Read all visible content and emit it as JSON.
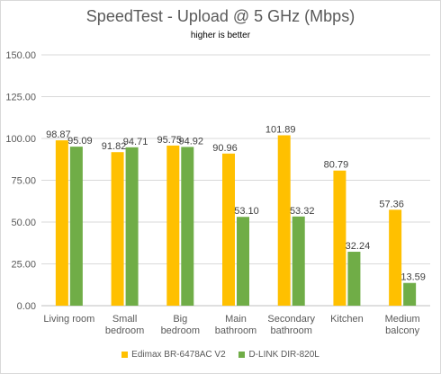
{
  "chart_data": {
    "type": "bar",
    "title": "SpeedTest - Upload @ 5 GHz (Mbps)",
    "subtitle": "higher is better",
    "categories": [
      [
        "Living room"
      ],
      [
        "Small",
        "bedroom"
      ],
      [
        "Big",
        "bedroom"
      ],
      [
        "Main",
        "bathroom"
      ],
      [
        "Secondary",
        "bathroom"
      ],
      [
        "Kitchen"
      ],
      [
        "Medium",
        "balcony"
      ]
    ],
    "series": [
      {
        "name": "Edimax BR-6478AC V2",
        "color": "#FFC000",
        "values": [
          98.87,
          91.82,
          95.75,
          90.96,
          101.89,
          80.79,
          57.36
        ],
        "labels": [
          "98.87",
          "91.82",
          "95.75",
          "90.96",
          "101.89",
          "80.79",
          "57.36"
        ]
      },
      {
        "name": "D-LINK DIR-820L",
        "color": "#70AD47",
        "values": [
          95.09,
          94.71,
          94.92,
          53.1,
          53.32,
          32.24,
          13.59
        ],
        "labels": [
          "95.09",
          "94.71",
          "94.92",
          "53.10",
          "53.32",
          "32.24",
          "13.59"
        ]
      }
    ],
    "y_ticks": [
      "0.00",
      "25.00",
      "50.00",
      "75.00",
      "100.00",
      "125.00",
      "150.00"
    ],
    "ylim": [
      0,
      150
    ],
    "grid": true,
    "legend_position": "bottom"
  }
}
